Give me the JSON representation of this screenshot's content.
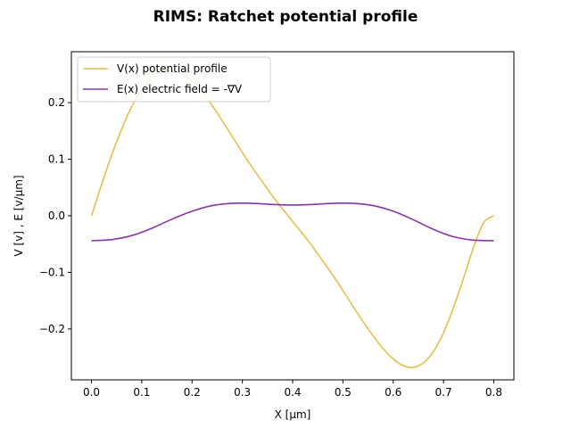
{
  "chart_data": {
    "type": "line",
    "title": "RIMS: Ratchet potential profile",
    "xlabel": "X [μm]",
    "ylabel": "V [v] , E [v/μm]",
    "xlim": [
      -0.04,
      0.84
    ],
    "ylim": [
      -0.29,
      0.29
    ],
    "xticks": [
      0.0,
      0.1,
      0.2,
      0.3,
      0.4,
      0.5,
      0.6,
      0.7,
      0.8
    ],
    "xtick_labels": [
      "0.0",
      "0.1",
      "0.2",
      "0.3",
      "0.4",
      "0.5",
      "0.6",
      "0.7",
      "0.8"
    ],
    "yticks": [
      -0.2,
      -0.1,
      0.0,
      0.1,
      0.2
    ],
    "ytick_labels": [
      "−0.2",
      "−0.1",
      "0.0",
      "0.1",
      "0.2"
    ],
    "grid": false,
    "legend_position": "top-left",
    "series": [
      {
        "name": "V(x) potential profile",
        "color": "#E8BE4A",
        "x": [
          0.0,
          0.02,
          0.04,
          0.06,
          0.08,
          0.1,
          0.12,
          0.14,
          0.16,
          0.18,
          0.2,
          0.22,
          0.24,
          0.26,
          0.28,
          0.3,
          0.32,
          0.34,
          0.36,
          0.38,
          0.4,
          0.42,
          0.44,
          0.46,
          0.48,
          0.5,
          0.52,
          0.54,
          0.56,
          0.58,
          0.6,
          0.62,
          0.64,
          0.66,
          0.68,
          0.7,
          0.72,
          0.74,
          0.76,
          0.78,
          0.8
        ],
        "y": [
          0.0,
          0.055,
          0.107,
          0.153,
          0.193,
          0.224,
          0.246,
          0.257,
          0.258,
          0.252,
          0.238,
          0.218,
          0.195,
          0.168,
          0.14,
          0.112,
          0.085,
          0.06,
          0.035,
          0.012,
          -0.01,
          -0.032,
          -0.055,
          -0.08,
          -0.105,
          -0.132,
          -0.16,
          -0.187,
          -0.212,
          -0.235,
          -0.253,
          -0.265,
          -0.268,
          -0.26,
          -0.24,
          -0.207,
          -0.162,
          -0.11,
          -0.055,
          -0.012,
          0.0
        ]
      },
      {
        "name": "E(x) electric field = -∇V",
        "color": "#8535A9",
        "x": [
          0.0,
          0.04,
          0.08,
          0.12,
          0.16,
          0.2,
          0.24,
          0.28,
          0.32,
          0.36,
          0.4,
          0.44,
          0.48,
          0.52,
          0.56,
          0.6,
          0.64,
          0.68,
          0.72,
          0.76,
          0.8
        ],
        "y": [
          -0.044,
          -0.042,
          -0.035,
          -0.022,
          -0.006,
          0.008,
          0.018,
          0.022,
          0.022,
          0.02,
          0.019,
          0.02,
          0.022,
          0.022,
          0.018,
          0.008,
          -0.007,
          -0.024,
          -0.037,
          -0.043,
          -0.044
        ]
      }
    ]
  }
}
